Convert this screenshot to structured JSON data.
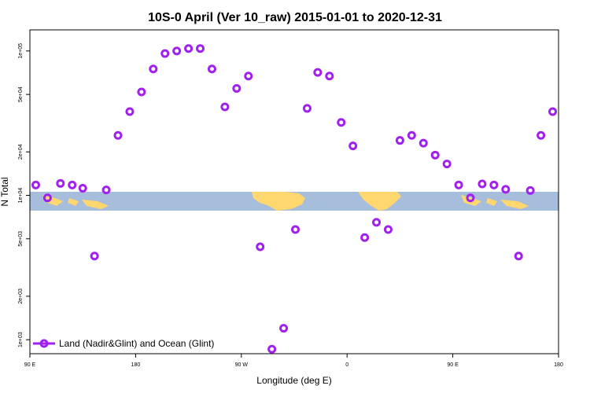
{
  "chart_data": {
    "type": "scatter",
    "title": "10S-0 April (Ver 10_raw)   2015-01-01 to 2020-12-31",
    "xlabel": "Longitude (deg E)",
    "ylabel": "N Total",
    "x_scale": "linear",
    "y_scale": "log",
    "xlim": [
      90,
      540
    ],
    "ylim": [
      800,
      140000
    ],
    "x_ticks": [
      {
        "value": 90,
        "label": "90 E"
      },
      {
        "value": 180,
        "label": "180"
      },
      {
        "value": 270,
        "label": "90 W"
      },
      {
        "value": 360,
        "label": "0"
      },
      {
        "value": 450,
        "label": "90 E"
      },
      {
        "value": 540,
        "label": "180"
      }
    ],
    "y_ticks": [
      {
        "value": 1000,
        "label": "1e+03"
      },
      {
        "value": 2000,
        "label": "2e+03"
      },
      {
        "value": 5000,
        "label": "5e+03"
      },
      {
        "value": 10000,
        "label": "1e+04"
      },
      {
        "value": 20000,
        "label": "2e+04"
      },
      {
        "value": 50000,
        "label": "5e+04"
      },
      {
        "value": 100000,
        "label": "1e+05"
      }
    ],
    "legend": {
      "position": "bottom-left",
      "label": "Land (Nadir&Glint) and Ocean (Glint)"
    },
    "series_color": "#A020F0",
    "map_strip": {
      "ocean_color": "#A6BDDB",
      "land_color": "#FFD76E"
    },
    "series": [
      {
        "x": [
          95,
          105,
          116,
          126,
          135,
          145,
          155,
          165,
          175,
          185,
          195,
          205,
          215,
          225,
          235,
          245,
          256,
          266,
          276,
          286,
          296,
          306,
          316,
          326,
          335,
          345,
          355,
          365,
          375,
          385,
          395,
          405,
          415,
          425,
          435,
          445,
          455,
          465,
          475,
          485,
          495,
          506,
          516,
          525,
          535
        ],
        "y": [
          11800,
          9600,
          12100,
          11800,
          11200,
          3800,
          10900,
          26000,
          38000,
          52000,
          75000,
          96000,
          100000,
          104000,
          104000,
          75000,
          41000,
          55000,
          67000,
          4400,
          860,
          1200,
          5800,
          40000,
          71000,
          67000,
          32000,
          22000,
          5100,
          6500,
          5800,
          24000,
          26000,
          23000,
          19000,
          16500,
          11800,
          9600,
          12000,
          11800,
          11000,
          3800,
          10800,
          26000,
          38000
        ]
      }
    ]
  }
}
